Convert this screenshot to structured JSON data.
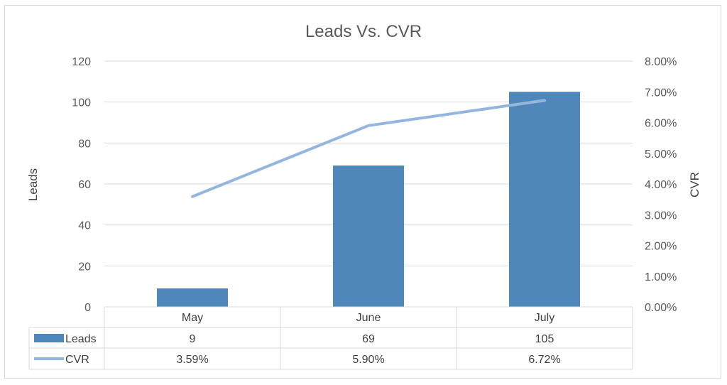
{
  "chart_data": {
    "type": "bar",
    "title": "Leads Vs. CVR",
    "categories": [
      "May",
      "June",
      "July"
    ],
    "series": [
      {
        "name": "Leads",
        "type": "bar",
        "axis": "left",
        "values": [
          9,
          69,
          105
        ],
        "labels": [
          "9",
          "69",
          "105"
        ],
        "color": "#4f87ba"
      },
      {
        "name": "CVR",
        "type": "line",
        "axis": "right",
        "values": [
          0.0359,
          0.059,
          0.0672
        ],
        "labels": [
          "3.59%",
          "5.90%",
          "6.72%"
        ],
        "color": "#94b6de"
      }
    ],
    "ylabel": "Leads",
    "y2label": "CVR",
    "ylim": [
      0,
      120
    ],
    "y2lim": [
      0,
      0.08
    ],
    "yticks": [
      "0",
      "20",
      "40",
      "60",
      "80",
      "100",
      "120"
    ],
    "y2ticks": [
      "0.00%",
      "1.00%",
      "2.00%",
      "3.00%",
      "4.00%",
      "5.00%",
      "6.00%",
      "7.00%",
      "8.00%"
    ],
    "grid": true,
    "legend": "data-table"
  }
}
